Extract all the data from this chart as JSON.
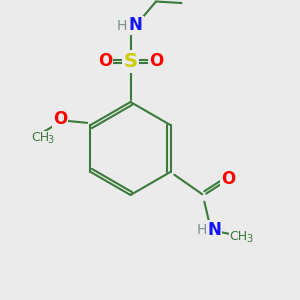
{
  "background_color": "#ebebeb",
  "bond_color": "#3a7a3a",
  "bond_width": 1.5,
  "atom_colors": {
    "N": "#1414ff",
    "O": "#ff0000",
    "S": "#cccc00",
    "H": "#7a9090"
  },
  "font_size_main": 11,
  "font_size_sub": 8
}
